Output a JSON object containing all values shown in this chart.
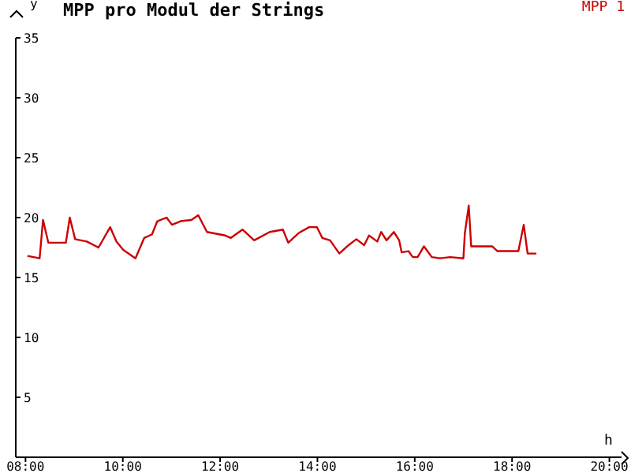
{
  "chart_data": {
    "type": "line",
    "title": "MPP pro Modul der Strings",
    "xlabel": "h",
    "ylabel": "y",
    "legend": "top right",
    "marker": "none",
    "line_style": "solid",
    "grid": false,
    "xlim": [
      7.8,
      20.25
    ],
    "xticks": [
      {
        "value": 8,
        "label": "08:00"
      },
      {
        "value": 10,
        "label": "10:00"
      },
      {
        "value": 12,
        "label": "12:00"
      },
      {
        "value": 14,
        "label": "14:00"
      },
      {
        "value": 16,
        "label": "16:00"
      },
      {
        "value": 18,
        "label": "18:00"
      },
      {
        "value": 20,
        "label": "20:00"
      }
    ],
    "ylim": [
      0,
      35
    ],
    "yticks": [
      5,
      10,
      15,
      20,
      25,
      30,
      35
    ],
    "x": [
      8.04,
      8.29,
      8.36,
      8.47,
      8.83,
      8.91,
      9.02,
      9.26,
      9.5,
      9.74,
      9.87,
      10.01,
      10.26,
      10.44,
      10.6,
      10.71,
      10.9,
      11.01,
      11.19,
      11.41,
      11.55,
      11.73,
      12.11,
      12.22,
      12.46,
      12.7,
      13.02,
      13.29,
      13.4,
      13.61,
      13.83,
      13.99,
      14.1,
      14.26,
      14.45,
      14.64,
      14.8,
      14.96,
      15.06,
      15.23,
      15.31,
      15.42,
      15.57,
      15.68,
      15.73,
      15.87,
      15.96,
      16.06,
      16.19,
      16.35,
      16.52,
      16.73,
      17.0,
      17.03,
      17.11,
      17.16,
      17.59,
      17.7,
      18.13,
      18.24,
      18.32,
      18.5
    ],
    "series": [
      {
        "name": "MPP 1",
        "color": "#cc0000",
        "values": [
          16.8,
          16.6,
          19.8,
          17.9,
          17.9,
          20.0,
          18.2,
          18.0,
          17.5,
          19.2,
          18.0,
          17.3,
          16.6,
          18.3,
          18.6,
          19.7,
          20.0,
          19.4,
          19.7,
          19.8,
          20.2,
          18.8,
          18.5,
          18.3,
          19.0,
          18.1,
          18.8,
          19.0,
          17.9,
          18.7,
          19.2,
          19.2,
          18.3,
          18.1,
          17.0,
          17.7,
          18.2,
          17.7,
          18.5,
          18.0,
          18.8,
          18.1,
          18.8,
          18.1,
          17.1,
          17.2,
          16.7,
          16.7,
          17.6,
          16.7,
          16.6,
          16.7,
          16.6,
          18.7,
          21.0,
          17.6,
          17.6,
          17.2,
          17.2,
          19.4,
          17.0,
          17.0
        ]
      }
    ]
  }
}
